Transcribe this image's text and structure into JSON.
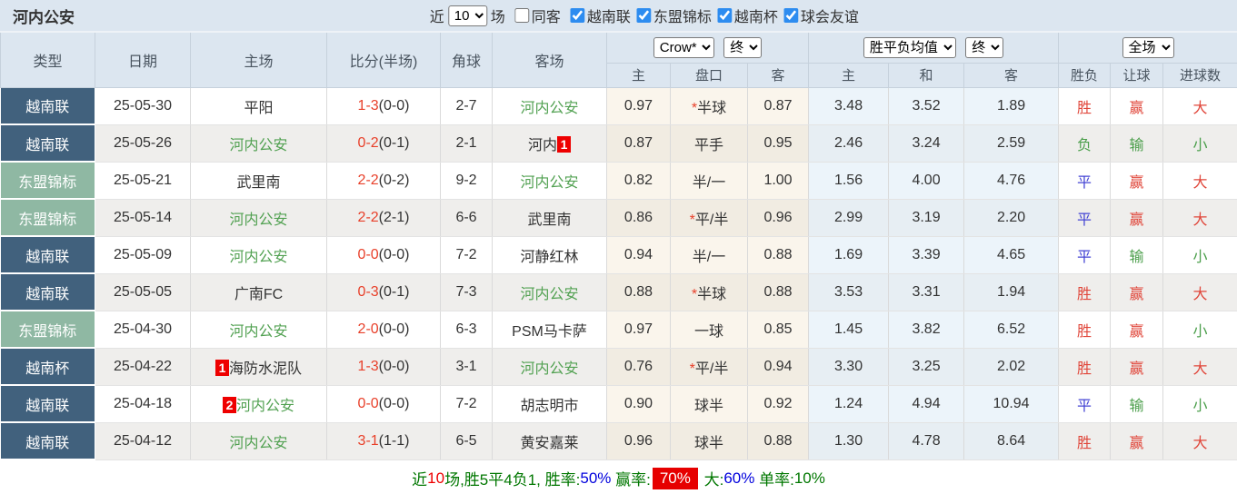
{
  "page": {
    "title": "河内公安"
  },
  "topbar": {
    "near_label": "近",
    "matches_count": "10",
    "matches_label": "场",
    "same_opponent": {
      "label": "同客",
      "checked": false
    },
    "filters": [
      {
        "label": "越南联",
        "checked": true
      },
      {
        "label": "东盟锦标",
        "checked": true
      },
      {
        "label": "越南杯",
        "checked": true
      },
      {
        "label": "球会友谊",
        "checked": true
      }
    ]
  },
  "table": {
    "headers": {
      "type": "类型",
      "date": "日期",
      "home": "主场",
      "score": "比分(半场)",
      "corner": "角球",
      "away": "客场",
      "ah_group": {
        "bookmaker_select": "Crow*",
        "time_select": "终",
        "cols": [
          "主",
          "盘口",
          "客"
        ]
      },
      "eu_group": {
        "avg_select": "胜平负均值",
        "time_select": "终",
        "cols": [
          "主",
          "和",
          "客"
        ]
      },
      "result_group": {
        "scope_select": "全场",
        "cols": [
          "胜负",
          "让球",
          "进球数"
        ]
      }
    },
    "rows": [
      {
        "type": "越南联",
        "type_class": "blue",
        "date": "25-05-30",
        "home": {
          "name": "平阳",
          "green": false,
          "badge": null,
          "badge_pos": null
        },
        "score": "1-3",
        "half": "(0-0)",
        "corner": "2-7",
        "away": {
          "name": "河内公安",
          "green": true,
          "badge": null,
          "badge_pos": null
        },
        "ah_home": "0.97",
        "handicap_star": true,
        "handicap": "半球",
        "ah_away": "0.87",
        "eu_home": "3.48",
        "eu_draw": "3.52",
        "eu_away": "1.89",
        "results": [
          {
            "text": "胜",
            "cls": "red"
          },
          {
            "text": "赢",
            "cls": "red"
          },
          {
            "text": "大",
            "cls": "red"
          }
        ]
      },
      {
        "type": "越南联",
        "type_class": "blue",
        "date": "25-05-26",
        "home": {
          "name": "河内公安",
          "green": true,
          "badge": null,
          "badge_pos": null
        },
        "score": "0-2",
        "half": "(0-1)",
        "corner": "2-1",
        "away": {
          "name": "河内",
          "green": false,
          "badge": "1",
          "badge_pos": "after"
        },
        "ah_home": "0.87",
        "handicap_star": false,
        "handicap": "平手",
        "ah_away": "0.95",
        "eu_home": "2.46",
        "eu_draw": "3.24",
        "eu_away": "2.59",
        "results": [
          {
            "text": "负",
            "cls": "green"
          },
          {
            "text": "输",
            "cls": "green"
          },
          {
            "text": "小",
            "cls": "green"
          }
        ]
      },
      {
        "type": "东盟锦标",
        "type_class": "green",
        "date": "25-05-21",
        "home": {
          "name": "武里南",
          "green": false,
          "badge": null,
          "badge_pos": null
        },
        "score": "2-2",
        "half": "(0-2)",
        "corner": "9-2",
        "away": {
          "name": "河内公安",
          "green": true,
          "badge": null,
          "badge_pos": null
        },
        "ah_home": "0.82",
        "handicap_star": false,
        "handicap": "半/一",
        "ah_away": "1.00",
        "eu_home": "1.56",
        "eu_draw": "4.00",
        "eu_away": "4.76",
        "results": [
          {
            "text": "平",
            "cls": "blue"
          },
          {
            "text": "赢",
            "cls": "red"
          },
          {
            "text": "大",
            "cls": "red"
          }
        ]
      },
      {
        "type": "东盟锦标",
        "type_class": "green",
        "date": "25-05-14",
        "home": {
          "name": "河内公安",
          "green": true,
          "badge": null,
          "badge_pos": null
        },
        "score": "2-2",
        "half": "(2-1)",
        "corner": "6-6",
        "away": {
          "name": "武里南",
          "green": false,
          "badge": null,
          "badge_pos": null
        },
        "ah_home": "0.86",
        "handicap_star": true,
        "handicap": "平/半",
        "ah_away": "0.96",
        "eu_home": "2.99",
        "eu_draw": "3.19",
        "eu_away": "2.20",
        "results": [
          {
            "text": "平",
            "cls": "blue"
          },
          {
            "text": "赢",
            "cls": "red"
          },
          {
            "text": "大",
            "cls": "red"
          }
        ]
      },
      {
        "type": "越南联",
        "type_class": "blue",
        "date": "25-05-09",
        "home": {
          "name": "河内公安",
          "green": true,
          "badge": null,
          "badge_pos": null
        },
        "score": "0-0",
        "half": "(0-0)",
        "corner": "7-2",
        "away": {
          "name": "河静红林",
          "green": false,
          "badge": null,
          "badge_pos": null
        },
        "ah_home": "0.94",
        "handicap_star": false,
        "handicap": "半/一",
        "ah_away": "0.88",
        "eu_home": "1.69",
        "eu_draw": "3.39",
        "eu_away": "4.65",
        "results": [
          {
            "text": "平",
            "cls": "blue"
          },
          {
            "text": "输",
            "cls": "green"
          },
          {
            "text": "小",
            "cls": "green"
          }
        ]
      },
      {
        "type": "越南联",
        "type_class": "blue",
        "date": "25-05-05",
        "home": {
          "name": "广南FC",
          "green": false,
          "badge": null,
          "badge_pos": null
        },
        "score": "0-3",
        "half": "(0-1)",
        "corner": "7-3",
        "away": {
          "name": "河内公安",
          "green": true,
          "badge": null,
          "badge_pos": null
        },
        "ah_home": "0.88",
        "handicap_star": true,
        "handicap": "半球",
        "ah_away": "0.88",
        "eu_home": "3.53",
        "eu_draw": "3.31",
        "eu_away": "1.94",
        "results": [
          {
            "text": "胜",
            "cls": "red"
          },
          {
            "text": "赢",
            "cls": "red"
          },
          {
            "text": "大",
            "cls": "red"
          }
        ]
      },
      {
        "type": "东盟锦标",
        "type_class": "green",
        "date": "25-04-30",
        "home": {
          "name": "河内公安",
          "green": true,
          "badge": null,
          "badge_pos": null
        },
        "score": "2-0",
        "half": "(0-0)",
        "corner": "6-3",
        "away": {
          "name": "PSM马卡萨",
          "green": false,
          "badge": null,
          "badge_pos": null
        },
        "ah_home": "0.97",
        "handicap_star": false,
        "handicap": "一球",
        "ah_away": "0.85",
        "eu_home": "1.45",
        "eu_draw": "3.82",
        "eu_away": "6.52",
        "results": [
          {
            "text": "胜",
            "cls": "red"
          },
          {
            "text": "赢",
            "cls": "red"
          },
          {
            "text": "小",
            "cls": "green"
          }
        ]
      },
      {
        "type": "越南杯",
        "type_class": "blue",
        "date": "25-04-22",
        "home": {
          "name": "海防水泥队",
          "green": false,
          "badge": "1",
          "badge_pos": "before"
        },
        "score": "1-3",
        "half": "(0-0)",
        "corner": "3-1",
        "away": {
          "name": "河内公安",
          "green": true,
          "badge": null,
          "badge_pos": null
        },
        "ah_home": "0.76",
        "handicap_star": true,
        "handicap": "平/半",
        "ah_away": "0.94",
        "eu_home": "3.30",
        "eu_draw": "3.25",
        "eu_away": "2.02",
        "results": [
          {
            "text": "胜",
            "cls": "red"
          },
          {
            "text": "赢",
            "cls": "red"
          },
          {
            "text": "大",
            "cls": "red"
          }
        ]
      },
      {
        "type": "越南联",
        "type_class": "blue",
        "date": "25-04-18",
        "home": {
          "name": "河内公安",
          "green": true,
          "badge": "2",
          "badge_pos": "before"
        },
        "score": "0-0",
        "half": "(0-0)",
        "corner": "7-2",
        "away": {
          "name": "胡志明市",
          "green": false,
          "badge": null,
          "badge_pos": null
        },
        "ah_home": "0.90",
        "handicap_star": false,
        "handicap": "球半",
        "ah_away": "0.92",
        "eu_home": "1.24",
        "eu_draw": "4.94",
        "eu_away": "10.94",
        "results": [
          {
            "text": "平",
            "cls": "blue"
          },
          {
            "text": "输",
            "cls": "green"
          },
          {
            "text": "小",
            "cls": "green"
          }
        ]
      },
      {
        "type": "越南联",
        "type_class": "blue",
        "date": "25-04-12",
        "home": {
          "name": "河内公安",
          "green": true,
          "badge": null,
          "badge_pos": null
        },
        "score": "3-1",
        "half": "(1-1)",
        "corner": "6-5",
        "away": {
          "name": "黄安嘉莱",
          "green": false,
          "badge": null,
          "badge_pos": null
        },
        "ah_home": "0.96",
        "handicap_star": false,
        "handicap": "球半",
        "ah_away": "0.88",
        "eu_home": "1.30",
        "eu_draw": "4.78",
        "eu_away": "8.64",
        "results": [
          {
            "text": "胜",
            "cls": "red"
          },
          {
            "text": "赢",
            "cls": "red"
          },
          {
            "text": "大",
            "cls": "red"
          }
        ]
      }
    ]
  },
  "footer": {
    "segments": [
      {
        "text": "近",
        "cls": "green"
      },
      {
        "text": "10",
        "cls": "red"
      },
      {
        "text": "场,胜5平4负1, ",
        "cls": "green"
      },
      {
        "text": "胜率:",
        "cls": "green"
      },
      {
        "text": "50%",
        "cls": "blue"
      },
      {
        "text": " 赢率:",
        "cls": "green"
      },
      {
        "text": "70%",
        "cls": "highlight"
      },
      {
        "text": " 大:",
        "cls": "green"
      },
      {
        "text": "60%",
        "cls": "blue"
      },
      {
        "text": " 单率:",
        "cls": "green"
      },
      {
        "text": "10%",
        "cls": "green"
      }
    ]
  },
  "colors": {
    "header_bg": "#dce6f0",
    "league_blue": "#41617d",
    "league_green": "#8fb8a3",
    "team_green": "#52a152",
    "score_red": "#e8402a",
    "win_red": "#e0463a",
    "draw_blue": "#4444d4",
    "lose_green": "#4a9e4a",
    "handicap_col_bg": "#faf5ec",
    "euro_col_bg": "#ecf4fa",
    "checkbox_blue": "#2d8cf0",
    "highlight_red": "#e60000"
  }
}
